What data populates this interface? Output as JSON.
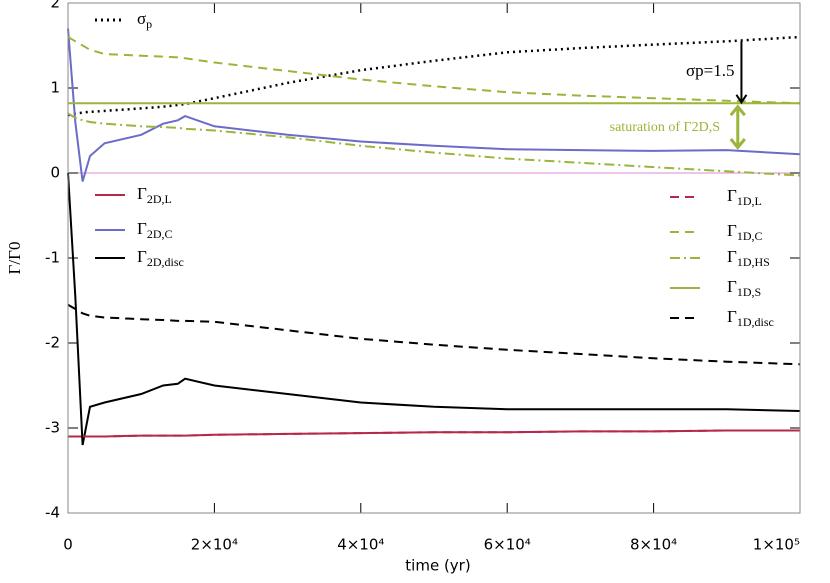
{
  "chart_data": {
    "type": "line",
    "xlabel": "time (yr)",
    "ylabel": "Γ/Γ0",
    "xlim": [
      0,
      100000
    ],
    "ylim": [
      -4,
      2
    ],
    "xticks": [
      0,
      {
        "value": 20000,
        "label": "2×10⁴"
      },
      {
        "value": 40000,
        "label": "4×10⁴"
      },
      {
        "value": 60000,
        "label": "6×10⁴"
      },
      {
        "value": 80000,
        "label": "8×10⁴"
      },
      {
        "value": 100000,
        "label": "1×10⁵"
      }
    ],
    "yticks": [
      -4,
      -3,
      -2,
      -1,
      0,
      1,
      2
    ],
    "x": [
      0,
      1000,
      2000,
      3000,
      5000,
      10000,
      13000,
      15000,
      16000,
      20000,
      30000,
      40000,
      50000,
      60000,
      70000,
      80000,
      90000,
      100000
    ],
    "series": [
      {
        "name": "σp",
        "color": "#000000",
        "dash": "dotted",
        "values": [
          0.68,
          0.7,
          0.71,
          0.72,
          0.73,
          0.76,
          0.78,
          0.8,
          0.81,
          0.88,
          1.06,
          1.21,
          1.32,
          1.42,
          1.47,
          1.51,
          1.55,
          1.6
        ]
      },
      {
        "name": "Γ2D,L",
        "color": "#b5284a",
        "dash": "solid",
        "values": [
          -3.1,
          -3.1,
          -3.1,
          -3.1,
          -3.1,
          -3.09,
          -3.09,
          -3.09,
          -3.09,
          -3.08,
          -3.07,
          -3.06,
          -3.05,
          -3.05,
          -3.04,
          -3.04,
          -3.03,
          -3.03
        ]
      },
      {
        "name": "Γ2D,C",
        "color": "#6b6bc8",
        "dash": "solid",
        "values": [
          1.7,
          0.6,
          -0.1,
          0.2,
          0.35,
          0.45,
          0.58,
          0.62,
          0.67,
          0.55,
          0.45,
          0.37,
          0.32,
          0.28,
          0.27,
          0.26,
          0.27,
          0.22
        ]
      },
      {
        "name": "Γ2D,disc",
        "color": "#000000",
        "dash": "solid",
        "values": [
          0,
          -1.45,
          -3.2,
          -2.75,
          -2.7,
          -2.6,
          -2.5,
          -2.48,
          -2.42,
          -2.5,
          -2.6,
          -2.7,
          -2.75,
          -2.78,
          -2.78,
          -2.78,
          -2.78,
          -2.8
        ]
      },
      {
        "name": "Γ1D,L",
        "color": "#b5284a",
        "dash": "dashed",
        "values": [
          -3.1,
          -3.1,
          -3.1,
          -3.1,
          -3.1,
          -3.09,
          -3.09,
          -3.09,
          -3.09,
          -3.08,
          -3.07,
          -3.06,
          -3.05,
          -3.05,
          -3.04,
          -3.04,
          -3.03,
          -3.03
        ]
      },
      {
        "name": "Γ1D,C",
        "color": "#9ab53a",
        "dash": "dashed",
        "values": [
          1.6,
          1.55,
          1.5,
          1.45,
          1.4,
          1.38,
          1.37,
          1.36,
          1.35,
          1.3,
          1.2,
          1.1,
          1.02,
          0.95,
          0.91,
          0.88,
          0.85,
          0.82
        ]
      },
      {
        "name": "Γ1D,HS",
        "color": "#9ab53a",
        "dash": "dashdot",
        "values": [
          0.7,
          0.65,
          0.62,
          0.6,
          0.58,
          0.55,
          0.54,
          0.53,
          0.52,
          0.5,
          0.42,
          0.32,
          0.24,
          0.17,
          0.12,
          0.07,
          0.02,
          -0.03
        ]
      },
      {
        "name": "Γ1D,S",
        "color": "#9ab53a",
        "dash": "solid",
        "values": [
          0.82,
          0.82,
          0.82,
          0.82,
          0.82,
          0.82,
          0.82,
          0.82,
          0.82,
          0.82,
          0.82,
          0.82,
          0.82,
          0.82,
          0.82,
          0.82,
          0.82,
          0.82
        ]
      },
      {
        "name": "Γ1D,disc",
        "color": "#000000",
        "dash": "dashed",
        "values": [
          -1.55,
          -1.6,
          -1.65,
          -1.68,
          -1.7,
          -1.72,
          -1.73,
          -1.74,
          -1.74,
          -1.75,
          -1.85,
          -1.95,
          -2.02,
          -2.08,
          -2.13,
          -2.18,
          -2.22,
          -2.25
        ]
      }
    ],
    "annotations": [
      "σp=1.5",
      "saturation of Γ2D,S"
    ]
  }
}
